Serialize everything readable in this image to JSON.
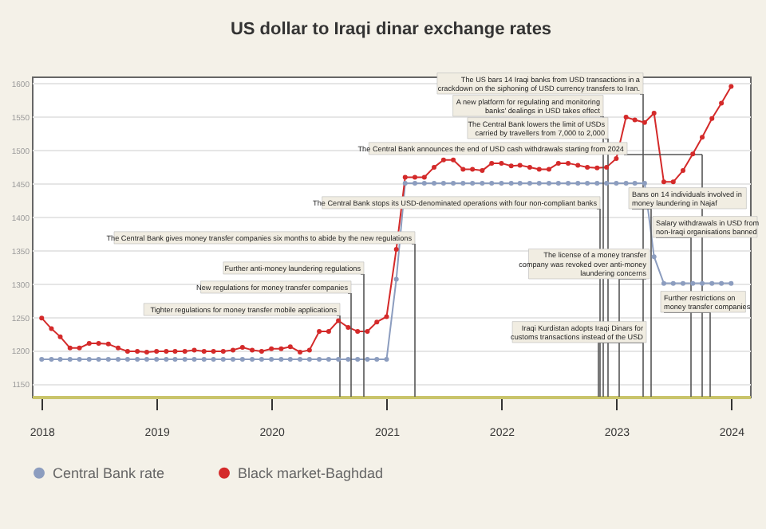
{
  "chart_data": {
    "type": "line",
    "title": "US dollar to Iraqi dinar exchange rates",
    "x": [
      "2018-01",
      "2018-02",
      "2018-03",
      "2018-04",
      "2018-05",
      "2018-06",
      "2018-07",
      "2018-08",
      "2018-09",
      "2018-10",
      "2018-11",
      "2018-12",
      "2019-01",
      "2019-02",
      "2019-03",
      "2019-04",
      "2019-05",
      "2019-06",
      "2019-07",
      "2019-08",
      "2019-09",
      "2019-10",
      "2019-11",
      "2019-12",
      "2020-01",
      "2020-02",
      "2020-03",
      "2020-04",
      "2020-05",
      "2020-06",
      "2020-07",
      "2020-08",
      "2020-09",
      "2020-10",
      "2020-11",
      "2020-12",
      "2021-01",
      "2021-02",
      "2021-03",
      "2021-04",
      "2021-05",
      "2021-06",
      "2021-07",
      "2021-08",
      "2021-09",
      "2021-10",
      "2021-11",
      "2021-12",
      "2022-01",
      "2022-02",
      "2022-03",
      "2022-04",
      "2022-05",
      "2022-06",
      "2022-07",
      "2022-08",
      "2022-09",
      "2022-10",
      "2022-11",
      "2022-12",
      "2023-01",
      "2023-02",
      "2023-03",
      "2023-04",
      "2023-05",
      "2023-06",
      "2023-07",
      "2023-08",
      "2023-09",
      "2023-10",
      "2023-11",
      "2023-12",
      "2024-01"
    ],
    "series": [
      {
        "name": "Central Bank rate",
        "color": "#8c9dbf",
        "values": [
          1186,
          1186,
          1186,
          1186,
          1186,
          1186,
          1186,
          1186,
          1186,
          1186,
          1186,
          1186,
          1186,
          1186,
          1186,
          1186,
          1186,
          1186,
          1186,
          1186,
          1186,
          1186,
          1186,
          1186,
          1186,
          1186,
          1186,
          1186,
          1186,
          1186,
          1186,
          1186,
          1186,
          1186,
          1186,
          1186,
          1186,
          1306,
          1450,
          1450,
          1450,
          1450,
          1450,
          1450,
          1450,
          1450,
          1450,
          1450,
          1450,
          1450,
          1450,
          1450,
          1450,
          1450,
          1450,
          1450,
          1450,
          1450,
          1450,
          1450,
          1450,
          1450,
          1450,
          1450,
          1340,
          1300,
          1300,
          1300,
          1300,
          1300,
          1300,
          1300,
          1300
        ]
      },
      {
        "name": "Black market-Baghdad",
        "color": "#d42a2a",
        "values": [
          1248,
          1232,
          1220,
          1203,
          1203,
          1210,
          1210,
          1209,
          1203,
          1198,
          1198,
          1197,
          1198,
          1198,
          1198,
          1198,
          1200,
          1198,
          1198,
          1198,
          1200,
          1204,
          1200,
          1198,
          1202,
          1202,
          1205,
          1197,
          1200,
          1228,
          1228,
          1244,
          1234,
          1228,
          1228,
          1242,
          1250,
          1351,
          1459,
          1459,
          1459,
          1474,
          1485,
          1485,
          1471,
          1471,
          1469,
          1480,
          1480,
          1476,
          1477,
          1474,
          1471,
          1471,
          1480,
          1480,
          1477,
          1474,
          1473,
          1474,
          1487,
          1549,
          1545,
          1541,
          1555,
          1452,
          1452,
          1469,
          1494,
          1519,
          1547,
          1570,
          1595
        ]
      }
    ],
    "xlim": [
      "2017-12-01",
      "2024-03-01"
    ],
    "xticks": [
      "2018",
      "2019",
      "2020",
      "2021",
      "2022",
      "2023",
      "2024"
    ],
    "ylim": [
      1130,
      1610
    ],
    "yticks": [
      1150,
      1200,
      1250,
      1300,
      1350,
      1400,
      1450,
      1500,
      1550,
      1600
    ],
    "grid": "y",
    "legend": "bottom",
    "marker": "circle",
    "annotations": [
      "Tighter regulations for money transfer mobile applications",
      "New regulations for money transfer companies",
      "Further anti-money laundering regulations",
      "The Central Bank gives money transfer companies six months to abide by the new regulations",
      "The Central Bank stops its USD-denominated operations with four non-compliant banks",
      "A new platform for regulating and monitoring banks' dealings in USD takes effect",
      "The US bars 14 Iraqi banks from USD transactions in a crackdown on the siphoning of USD currency transfers to Iran.",
      "The Central Bank lowers the limit of USDs carried by travellers from 7,000 to 2,000",
      "The Central Bank announces the end of USD cash withdrawals starting from 2024",
      "Bans on 14 individuals involved in money laundering in Najaf",
      "Salary withdrawals in USD from non-Iraqi organisations banned",
      "The license of a money transfer company was revoked over anti-money laundering concerns",
      "Further restrictions on money transfer companies",
      "Iraqi Kurdistan adopts Iraqi Dinars for customs transactions instead of the USD"
    ]
  }
}
